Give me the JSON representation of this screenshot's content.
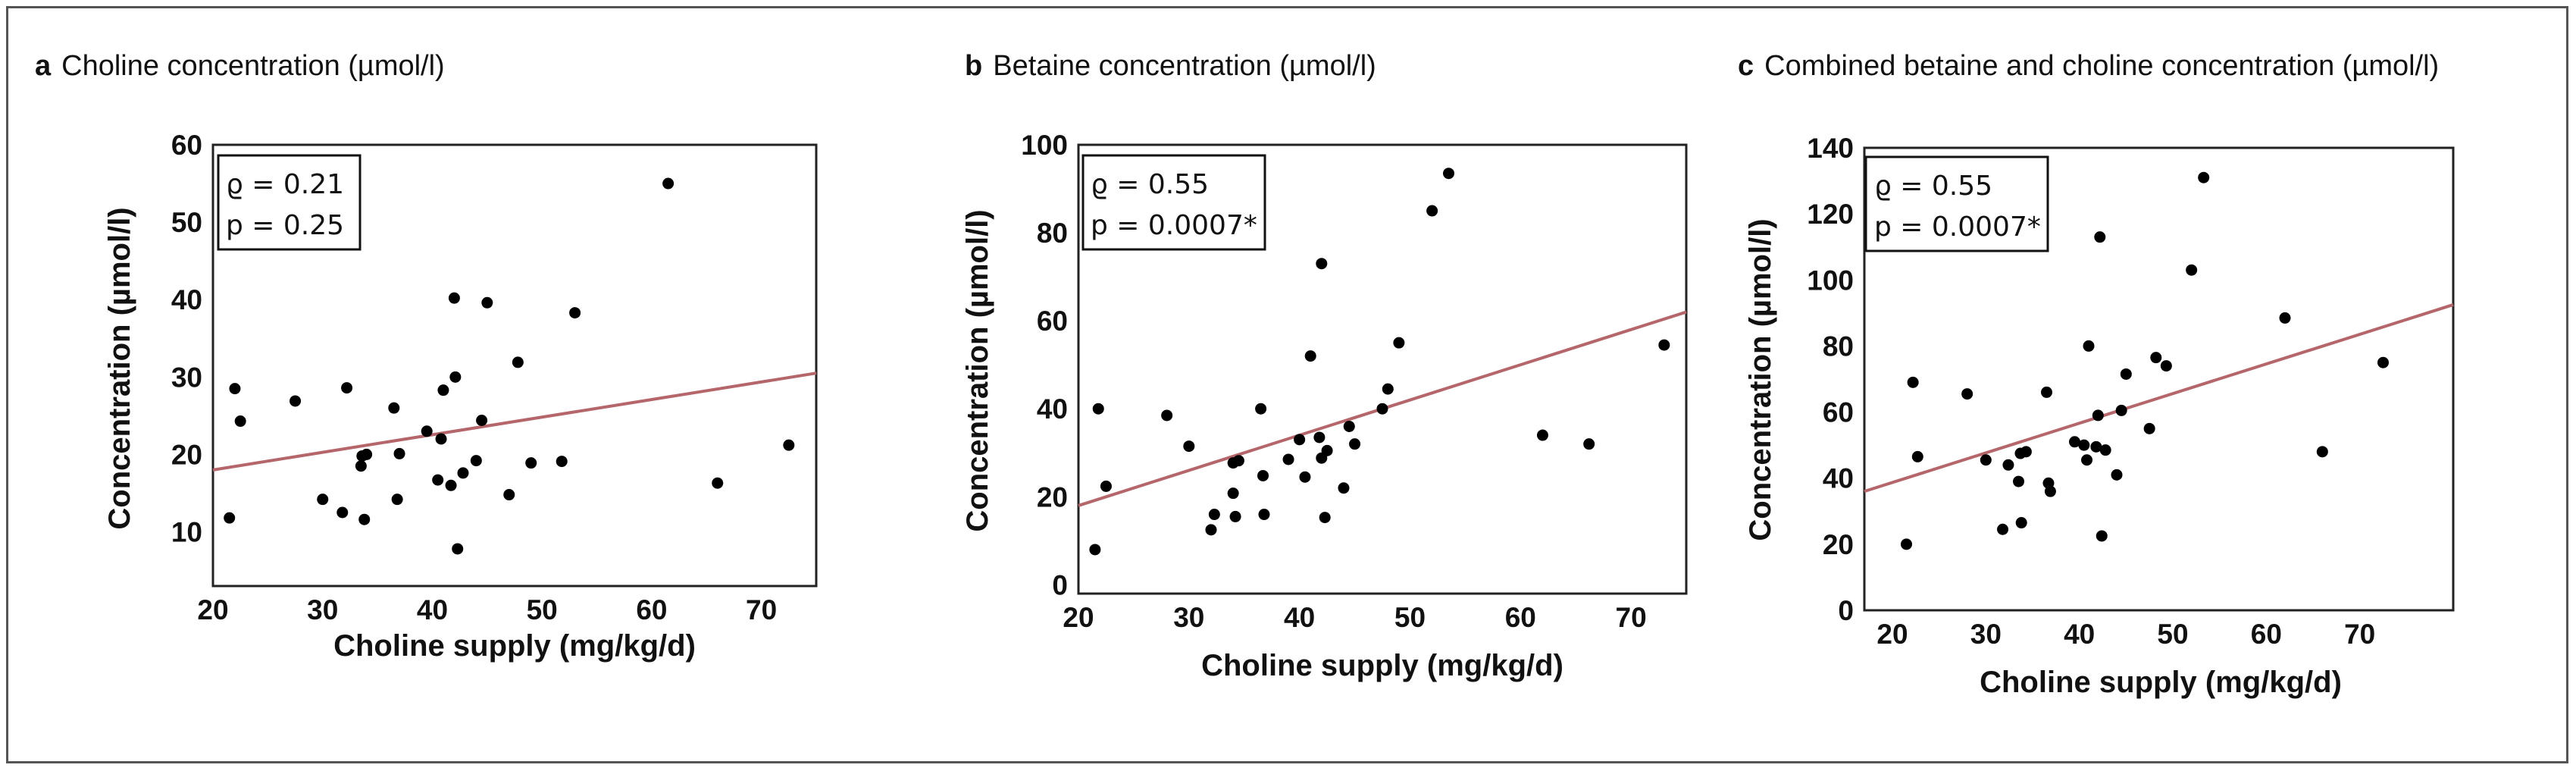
{
  "chart_data": [
    {
      "type": "scatter",
      "panel": "a",
      "title": "Choline concentration (µmol/l)",
      "xlabel": "Choline supply (mg/kg/d)",
      "ylabel": "Concentration (µmol/l)",
      "xlim": [
        20,
        75
      ],
      "ylim": [
        3,
        60
      ],
      "xticks": [
        20,
        30,
        40,
        50,
        60,
        70
      ],
      "yticks": [
        10,
        20,
        30,
        40,
        50,
        60
      ],
      "stats": {
        "rho": "ϱ = 0.21",
        "p": "p = 0.25"
      },
      "regression": {
        "x0": 20,
        "y0": 18.0,
        "x1": 75,
        "y1": 30.5
      },
      "colors": {
        "point": "#000000",
        "line": "#b5666b"
      },
      "points": [
        [
          21.5,
          11.8
        ],
        [
          22.0,
          28.5
        ],
        [
          22.5,
          24.3
        ],
        [
          27.5,
          26.9
        ],
        [
          30.0,
          14.2
        ],
        [
          31.8,
          12.5
        ],
        [
          32.2,
          28.6
        ],
        [
          33.5,
          18.5
        ],
        [
          33.8,
          11.6
        ],
        [
          33.6,
          19.8
        ],
        [
          34.0,
          20.0
        ],
        [
          36.5,
          26.0
        ],
        [
          36.8,
          14.2
        ],
        [
          37.0,
          20.1
        ],
        [
          39.5,
          23.0
        ],
        [
          40.5,
          16.7
        ],
        [
          40.8,
          22.0
        ],
        [
          41.0,
          28.3
        ],
        [
          41.7,
          16.0
        ],
        [
          42.0,
          40.2
        ],
        [
          42.1,
          30.0
        ],
        [
          42.3,
          7.8
        ],
        [
          42.8,
          17.6
        ],
        [
          44.0,
          19.2
        ],
        [
          44.5,
          24.4
        ],
        [
          45.0,
          39.6
        ],
        [
          47.0,
          14.8
        ],
        [
          47.8,
          31.9
        ],
        [
          49.0,
          18.9
        ],
        [
          51.8,
          19.1
        ],
        [
          53.0,
          38.3
        ],
        [
          61.5,
          55.0
        ],
        [
          66.0,
          16.3
        ],
        [
          72.5,
          21.2
        ]
      ]
    },
    {
      "type": "scatter",
      "panel": "b",
      "title": "Betaine concentration (µmol/l)",
      "xlabel": "Choline supply (mg/kg/d)",
      "ylabel": "Concentration (µmol/l)",
      "xlim": [
        20,
        75
      ],
      "ylim": [
        -2,
        100
      ],
      "xticks": [
        20,
        30,
        40,
        50,
        60,
        70
      ],
      "yticks": [
        0,
        20,
        40,
        60,
        80,
        100
      ],
      "stats": {
        "rho": "ϱ = 0.55",
        "p": "p = 0.0007*"
      },
      "regression": {
        "x0": 20,
        "y0": 18.0,
        "x1": 75,
        "y1": 62.0
      },
      "colors": {
        "point": "#000000",
        "line": "#b5666b"
      },
      "points": [
        [
          21.5,
          8.0
        ],
        [
          21.8,
          40.0
        ],
        [
          22.5,
          22.4
        ],
        [
          28.0,
          38.5
        ],
        [
          30.0,
          31.5
        ],
        [
          32.0,
          12.5
        ],
        [
          32.3,
          16.0
        ],
        [
          34.0,
          20.8
        ],
        [
          34.0,
          27.7
        ],
        [
          34.2,
          15.5
        ],
        [
          34.5,
          28.2
        ],
        [
          36.5,
          40.0
        ],
        [
          36.7,
          24.8
        ],
        [
          36.8,
          16.0
        ],
        [
          39.0,
          28.5
        ],
        [
          40.0,
          33.0
        ],
        [
          40.5,
          24.5
        ],
        [
          41.0,
          52.0
        ],
        [
          41.8,
          33.5
        ],
        [
          42.0,
          73.0
        ],
        [
          42.0,
          28.8
        ],
        [
          42.3,
          15.3
        ],
        [
          42.5,
          30.5
        ],
        [
          44.0,
          22.0
        ],
        [
          44.5,
          36.0
        ],
        [
          45.0,
          32.0
        ],
        [
          47.5,
          40.0
        ],
        [
          48.0,
          44.5
        ],
        [
          49.0,
          55.0
        ],
        [
          52.0,
          85.0
        ],
        [
          53.5,
          93.5
        ],
        [
          62.0,
          34.0
        ],
        [
          66.2,
          32.0
        ],
        [
          73.0,
          54.5
        ]
      ]
    },
    {
      "type": "scatter",
      "panel": "c",
      "title": "Combined betaine and choline concentration (µmol/l)",
      "xlabel": "Choline supply (mg/kg/d)",
      "ylabel": "Concentration (µmol/l)",
      "xlim": [
        17,
        80
      ],
      "ylim": [
        0,
        140
      ],
      "xticks": [
        20,
        30,
        40,
        50,
        60,
        70
      ],
      "yticks": [
        0,
        20,
        40,
        60,
        80,
        100,
        120,
        140
      ],
      "stats": {
        "rho": "ϱ = 0.55",
        "p": "p = 0.0007*"
      },
      "regression": {
        "x0": 17,
        "y0": 36.0,
        "x1": 80,
        "y1": 92.5
      },
      "colors": {
        "point": "#000000",
        "line": "#b5666b"
      },
      "points": [
        [
          21.5,
          20.0
        ],
        [
          22.2,
          69.0
        ],
        [
          22.7,
          46.5
        ],
        [
          28.0,
          65.5
        ],
        [
          30.0,
          45.5
        ],
        [
          31.8,
          24.5
        ],
        [
          32.4,
          44.0
        ],
        [
          33.5,
          39.0
        ],
        [
          33.8,
          26.5
        ],
        [
          33.7,
          47.5
        ],
        [
          34.3,
          48.0
        ],
        [
          36.5,
          66.0
        ],
        [
          36.7,
          38.5
        ],
        [
          36.9,
          36.0
        ],
        [
          39.5,
          51.0
        ],
        [
          40.5,
          50.0
        ],
        [
          40.8,
          45.5
        ],
        [
          41.0,
          80.0
        ],
        [
          41.8,
          49.5
        ],
        [
          42.0,
          59.0
        ],
        [
          42.2,
          113.0
        ],
        [
          42.4,
          22.5
        ],
        [
          42.8,
          48.5
        ],
        [
          44.0,
          41.0
        ],
        [
          44.5,
          60.5
        ],
        [
          45.0,
          71.5
        ],
        [
          47.5,
          55.0
        ],
        [
          48.2,
          76.5
        ],
        [
          49.3,
          74.0
        ],
        [
          52.0,
          103.0
        ],
        [
          53.3,
          131.0
        ],
        [
          62.0,
          88.5
        ],
        [
          66.0,
          48.0
        ],
        [
          72.5,
          75.0
        ]
      ]
    }
  ]
}
